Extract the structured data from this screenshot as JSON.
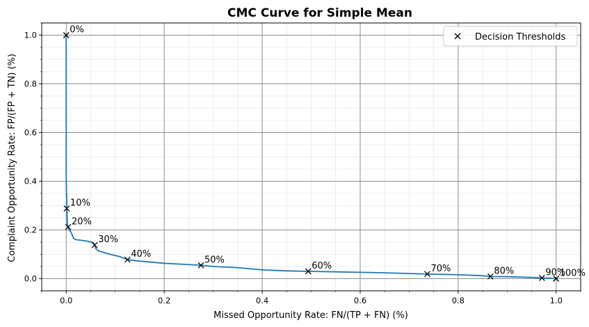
{
  "chart_data": {
    "type": "line",
    "title": "CMC Curve for Simple Mean",
    "xlabel": "Missed Opportunity Rate: FN/(TP + FN) (%)",
    "ylabel": "Complaint Opportunity Rate: FP/(FP + TN) (%)",
    "xlim": [
      -0.05,
      1.05
    ],
    "ylim": [
      -0.05,
      1.05
    ],
    "xticks": [
      "0.0",
      "0.2",
      "0.4",
      "0.6",
      "0.8",
      "1.0"
    ],
    "yticks": [
      "0.0",
      "0.2",
      "0.4",
      "0.6",
      "0.8",
      "1.0"
    ],
    "grid": "major and minor",
    "line_color": "#1f77b4",
    "curve": {
      "x": [
        0.0,
        0.0,
        0.0,
        0.0,
        0.001,
        0.001,
        0.002,
        0.002,
        0.003,
        0.004,
        0.006,
        0.01,
        0.015,
        0.02,
        0.04,
        0.055,
        0.058,
        0.06,
        0.065,
        0.08,
        0.1,
        0.11,
        0.125,
        0.15,
        0.2,
        0.275,
        0.3,
        0.35,
        0.4,
        0.45,
        0.494,
        0.55,
        0.6,
        0.65,
        0.7,
        0.737,
        0.8,
        0.85,
        0.866,
        0.9,
        0.95,
        0.971,
        0.985,
        1.0
      ],
      "y": [
        1.0,
        0.8,
        0.6,
        0.4,
        0.32,
        0.288,
        0.25,
        0.232,
        0.22,
        0.212,
        0.2,
        0.19,
        0.165,
        0.16,
        0.155,
        0.148,
        0.138,
        0.125,
        0.115,
        0.105,
        0.095,
        0.09,
        0.078,
        0.072,
        0.063,
        0.055,
        0.05,
        0.045,
        0.036,
        0.032,
        0.03,
        0.028,
        0.026,
        0.024,
        0.021,
        0.019,
        0.016,
        0.012,
        0.009,
        0.008,
        0.005,
        0.003,
        0.002,
        0.0
      ]
    },
    "thresholds": [
      {
        "label": "0%",
        "x": 0.0,
        "y": 1.0
      },
      {
        "label": "10%",
        "x": 0.001,
        "y": 0.288
      },
      {
        "label": "20%",
        "x": 0.004,
        "y": 0.212
      },
      {
        "label": "30%",
        "x": 0.058,
        "y": 0.138
      },
      {
        "label": "40%",
        "x": 0.125,
        "y": 0.078
      },
      {
        "label": "50%",
        "x": 0.275,
        "y": 0.055
      },
      {
        "label": "60%",
        "x": 0.494,
        "y": 0.03
      },
      {
        "label": "70%",
        "x": 0.737,
        "y": 0.019
      },
      {
        "label": "80%",
        "x": 0.866,
        "y": 0.009
      },
      {
        "label": "90%",
        "x": 0.971,
        "y": 0.003
      },
      {
        "label": "100%",
        "x": 1.0,
        "y": 0.0
      }
    ],
    "legend": {
      "label": "Decision Thresholds",
      "position": "upper right",
      "marker": "x"
    }
  }
}
